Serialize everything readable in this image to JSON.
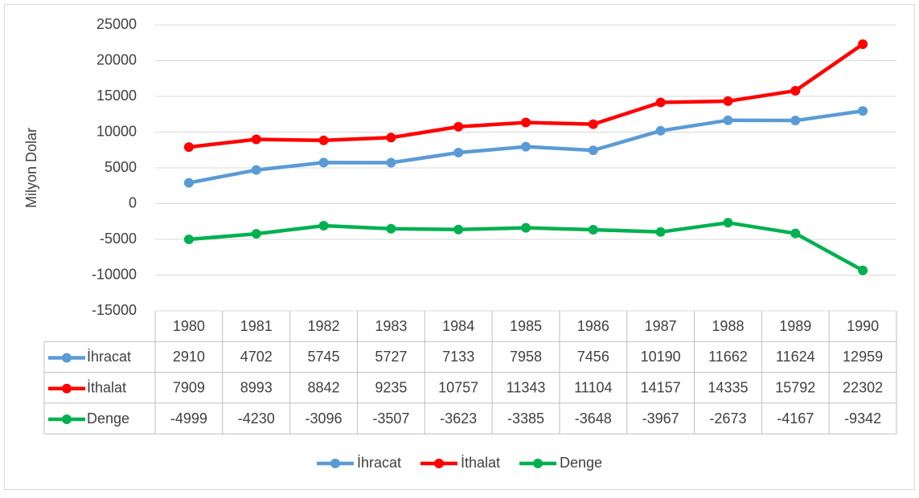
{
  "chart_data": {
    "type": "line",
    "y_label": "Milyon Dolar",
    "categories": [
      "1980",
      "1981",
      "1982",
      "1983",
      "1984",
      "1985",
      "1986",
      "1987",
      "1988",
      "1989",
      "1990"
    ],
    "series": [
      {
        "name": "İhracat",
        "color": "#5b9bd5",
        "values": [
          2910,
          4702,
          5745,
          5727,
          7133,
          7958,
          7456,
          10190,
          11662,
          11624,
          12959
        ]
      },
      {
        "name": "İthalat",
        "color": "#ff0000",
        "values": [
          7909,
          8993,
          8842,
          9235,
          10757,
          11343,
          11104,
          14157,
          14335,
          15792,
          22302
        ]
      },
      {
        "name": "Denge",
        "color": "#00b050",
        "values": [
          -4999,
          -4230,
          -3096,
          -3507,
          -3623,
          -3385,
          -3648,
          -3967,
          -2673,
          -4167,
          -9342
        ]
      }
    ],
    "ylim": [
      -15000,
      25000
    ],
    "yticks": [
      -15000,
      -10000,
      -5000,
      0,
      5000,
      10000,
      15000,
      20000,
      25000
    ],
    "grid": true,
    "legend": "bottom",
    "data_table": true
  }
}
